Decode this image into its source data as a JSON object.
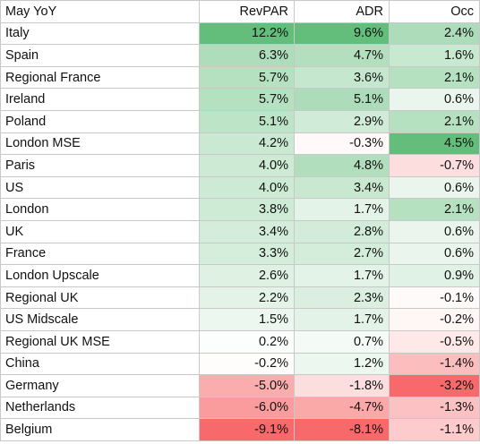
{
  "table": {
    "columns": [
      "May YoY",
      "RevPAR",
      "ADR",
      "Occ"
    ],
    "rows": [
      [
        "Italy",
        "12.2%",
        "9.6%",
        "2.4%"
      ],
      [
        "Spain",
        "6.3%",
        "4.7%",
        "1.6%"
      ],
      [
        "Regional France",
        "5.7%",
        "3.6%",
        "2.1%"
      ],
      [
        "Ireland",
        "5.7%",
        "5.1%",
        "0.6%"
      ],
      [
        "Poland",
        "5.1%",
        "2.9%",
        "2.1%"
      ],
      [
        "London MSE",
        "4.2%",
        "-0.3%",
        "4.5%"
      ],
      [
        "Paris",
        "4.0%",
        "4.8%",
        "-0.7%"
      ],
      [
        "US",
        "4.0%",
        "3.4%",
        "0.6%"
      ],
      [
        "London",
        "3.8%",
        "1.7%",
        "2.1%"
      ],
      [
        "UK",
        "3.4%",
        "2.8%",
        "0.6%"
      ],
      [
        "France",
        "3.3%",
        "2.7%",
        "0.6%"
      ],
      [
        "London Upscale",
        "2.6%",
        "1.7%",
        "0.9%"
      ],
      [
        "Regional UK",
        "2.2%",
        "2.3%",
        "-0.1%"
      ],
      [
        "US Midscale",
        "1.5%",
        "1.7%",
        "-0.2%"
      ],
      [
        "Regional UK MSE",
        "0.2%",
        "0.7%",
        "-0.5%"
      ],
      [
        "China",
        "-0.2%",
        "1.2%",
        "-1.4%"
      ],
      [
        "Germany",
        "-5.0%",
        "-1.8%",
        "-3.2%"
      ],
      [
        "Netherlands",
        "-6.0%",
        "-4.7%",
        "-1.3%"
      ],
      [
        "Belgium",
        "-9.1%",
        "-8.1%",
        "-1.1%"
      ]
    ]
  }
}
